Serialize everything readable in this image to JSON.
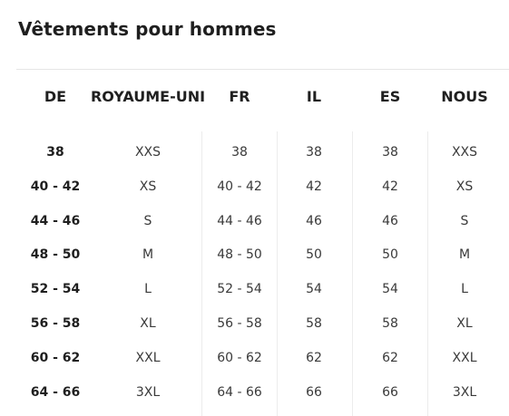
{
  "title": "Vêtements pour hommes",
  "headers": [
    "DE",
    "ROYAUME-UNI",
    "FR",
    "IL",
    "ES",
    "NOUS"
  ],
  "rows": [
    [
      "38",
      "XXS",
      "38",
      "38",
      "38",
      "XXS"
    ],
    [
      "40 - 42",
      "XS",
      "40 - 42",
      "42",
      "42",
      "XS"
    ],
    [
      "44 - 46",
      "S",
      "44 - 46",
      "46",
      "46",
      "S"
    ],
    [
      "48 - 50",
      "M",
      "48 - 50",
      "50",
      "50",
      "M"
    ],
    [
      "52 - 54",
      "L",
      "52 - 54",
      "54",
      "54",
      "L"
    ],
    [
      "56 - 58",
      "XL",
      "56 - 58",
      "58",
      "58",
      "XL"
    ],
    [
      "60 - 62",
      "XXL",
      "60 - 62",
      "62",
      "62",
      "XXL"
    ],
    [
      "64 - 66",
      "3XL",
      "64 - 66",
      "66",
      "66",
      "3XL"
    ]
  ]
}
